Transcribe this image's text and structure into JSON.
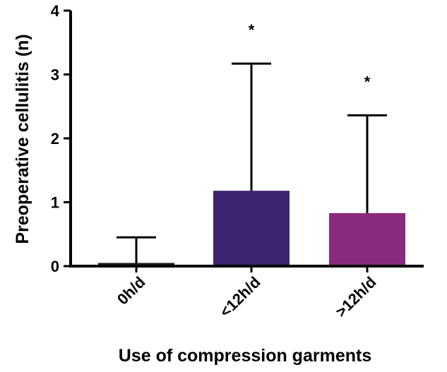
{
  "chart_data": {
    "type": "bar",
    "categories": [
      "0h/d",
      "<12h/d",
      ">12h/d"
    ],
    "values": [
      0.05,
      1.18,
      0.83
    ],
    "error_upper": [
      0.45,
      3.17,
      2.36
    ],
    "annotations": [
      "",
      "*",
      "*"
    ],
    "colors": [
      "#1f1f1f",
      "#3c2470",
      "#8a2a7e"
    ],
    "xlabel": "Use of compression garments",
    "ylabel": "Preoperative cellulitis (n)",
    "ylim": [
      0,
      4
    ],
    "yticks": [
      0,
      1,
      2,
      3,
      4
    ],
    "grid": false,
    "legend": "none"
  }
}
